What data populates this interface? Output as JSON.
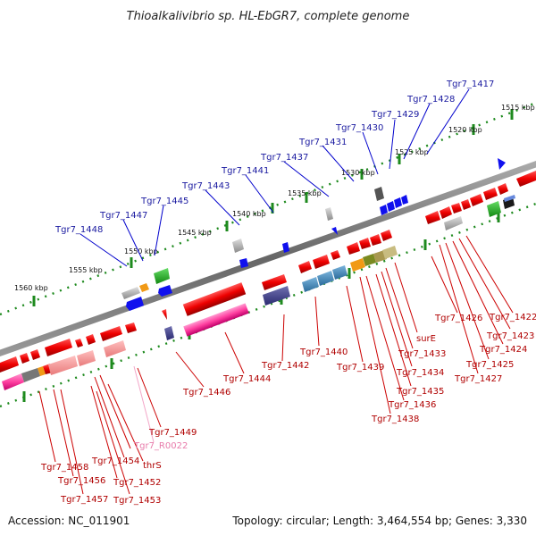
{
  "title": "Thioalkalivibrio sp. HL-EbGR7, complete genome",
  "footer": {
    "accession": "Accession: NC_011901",
    "topology": "Topology: circular; Length: 3,464,554 bp; Genes: 3,330"
  },
  "colors": {
    "backbone": "#777777",
    "tick_green": "#1e8a1e",
    "forward_gene": "#ee0000",
    "reverse_gene": "#1010ee",
    "pseudo": "#aaaaaa",
    "rna": "#ff66b3",
    "top_leader": "#0000cc",
    "bottom_leader": "#cc0000",
    "rna_leader": "#f3a6c8"
  },
  "kbp_labels": [
    "1515 kbp",
    "1520 kbp",
    "1525 kbp",
    "1530 kbp",
    "1535 kbp",
    "1540 kbp",
    "1545 kbp",
    "1550 kbp",
    "1555 kbp",
    "1560 kbp"
  ],
  "top_labels": [
    "Tgr7_1417",
    "Tgr7_1428",
    "Tgr7_1429",
    "Tgr7_1430",
    "Tgr7_1431",
    "Tgr7_1437",
    "Tgr7_1441",
    "Tgr7_1443",
    "Tgr7_1445",
    "Tgr7_1447",
    "Tgr7_1448"
  ],
  "bottom_labels": [
    "Tgr7_1422",
    "Tgr7_1423",
    "Tgr7_1424",
    "Tgr7_1425",
    "Tgr7_1427",
    "Tgr7_1426",
    "surE",
    "Tgr7_1433",
    "Tgr7_1434",
    "Tgr7_1435",
    "Tgr7_1436",
    "Tgr7_1438",
    "Tgr7_1439",
    "Tgr7_1440",
    "Tgr7_1442",
    "Tgr7_1444",
    "Tgr7_1446",
    "Tgr7_1449",
    "Tgr7_R0022",
    "thrS",
    "Tgr7_1454",
    "Tgr7_1452",
    "Tgr7_1453",
    "Tgr7_1458",
    "Tgr7_1456",
    "Tgr7_1457"
  ]
}
